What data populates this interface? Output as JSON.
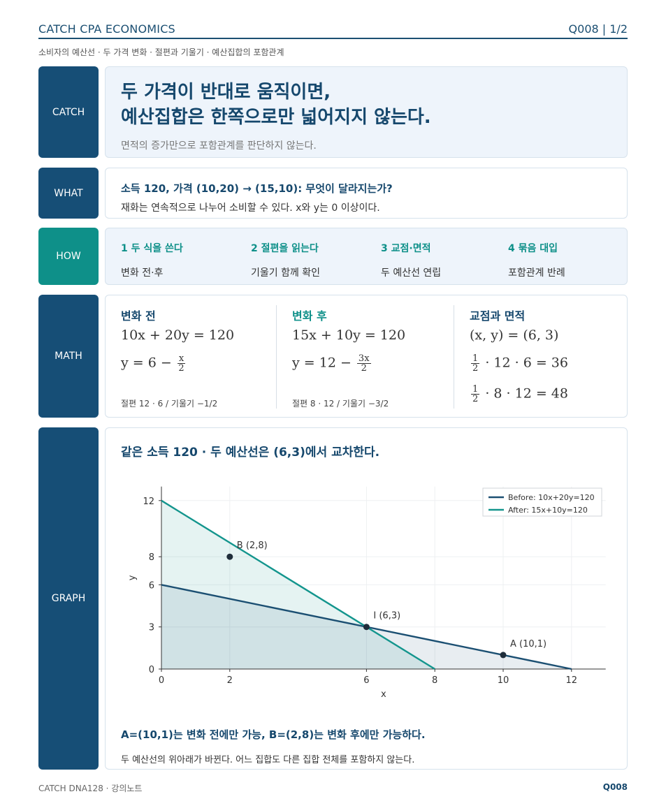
{
  "header": {
    "brand": "CATCH CPA ECONOMICS",
    "qnum": "Q008  |  1/2"
  },
  "subtitle": "소비자의 예산선 · 두 가격 변화 · 절편과 기울기 · 예산집합의 포함관계",
  "labels": {
    "catch": "CATCH",
    "what": "WHAT",
    "how": "HOW",
    "math": "MATH",
    "graph": "GRAPH"
  },
  "catch": {
    "title_line1": "두 가격이 반대로 움직이면,",
    "title_line2": "예산집합은 한쪽으로만 넓어지지 않는다.",
    "note": "면적의 증가만으로 포함관계를 판단하지 않는다."
  },
  "what": {
    "question": "소득 120, 가격 (10,20) → (15,10): 무엇이 달라지는가?",
    "desc": "재화는 연속적으로 나누어 소비할 수 있다. x와 y는 0 이상이다."
  },
  "how": {
    "steps": [
      {
        "title": "1 두 식을 쓴다",
        "desc": "변화 전·후"
      },
      {
        "title": "2 절편을 읽는다",
        "desc": "기울기 함께 확인"
      },
      {
        "title": "3 교점·면적",
        "desc": "두 예산선 연립"
      },
      {
        "title": "4 묶음 대입",
        "desc": "포함관계 반례"
      }
    ]
  },
  "math": {
    "before": {
      "head": "변화 전",
      "eq1": "10x + 20y = 120",
      "eq2_left": "y = 6 −",
      "eq2_num": "x",
      "eq2_den": "2",
      "note": "절편 12 · 6 / 기울기 −1/2"
    },
    "after": {
      "head": "변화 후",
      "eq1": "15x + 10y = 120",
      "eq2_left": "y = 12 −",
      "eq2_num": "3x",
      "eq2_den": "2",
      "note": "절편 8 · 12 / 기울기 −3/2"
    },
    "cross": {
      "head": "교점과 면적",
      "eq1": "(x, y) = (6, 3)",
      "frac_num": "1",
      "frac_den": "2",
      "eq2_rest": "· 12 · 6 = 36",
      "eq3_rest": "· 8 · 12 = 48"
    }
  },
  "graph": {
    "title": "같은 소득 120 · 두 예산선은 (6,3)에서 교차한다.",
    "foot1": "A=(10,1)는 변화 전에만 가능, B=(2,8)는 변화 후에만 가능하다.",
    "foot2": "두 예산선의 위아래가 바뀐다. 어느 집합도 다른 집합 전체를 포함하지 않는다."
  },
  "chart_data": {
    "type": "line",
    "xlabel": "x",
    "ylabel": "y",
    "xlim": [
      0,
      13
    ],
    "ylim": [
      0,
      13
    ],
    "x_ticks": [
      0,
      2,
      6,
      8,
      10,
      12
    ],
    "y_ticks": [
      0,
      3,
      6,
      8,
      12
    ],
    "grid": true,
    "legend_position": "top-right",
    "series": [
      {
        "name": "Before: 10x+20y=120",
        "color": "#1b4f72",
        "points": [
          [
            0,
            6
          ],
          [
            12,
            0
          ]
        ]
      },
      {
        "name": "After: 15x+10y=120",
        "color": "#13958d",
        "points": [
          [
            0,
            12
          ],
          [
            8,
            0
          ]
        ]
      }
    ],
    "points": [
      {
        "label": "B (2,8)",
        "x": 2,
        "y": 8
      },
      {
        "label": "I (6,3)",
        "x": 6,
        "y": 3
      },
      {
        "label": "A (10,1)",
        "x": 10,
        "y": 1
      }
    ]
  },
  "footer": {
    "left": "CATCH DNA128 · 강의노트",
    "right": "Q008"
  }
}
